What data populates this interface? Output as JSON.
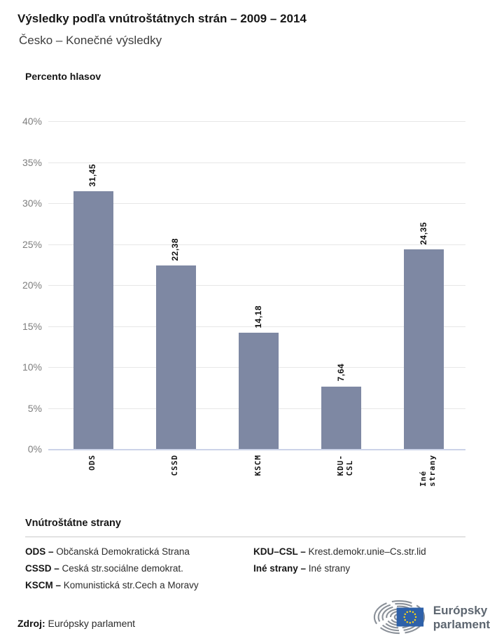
{
  "header": {
    "title": "Výsledky podľa vnútroštátnych strán – 2009 – 2014",
    "subtitle": "Česko – Konečné výsledky"
  },
  "chart_data": {
    "type": "bar",
    "axis_title": "Percento hlasov",
    "categories": [
      "ODS",
      "CSSD",
      "KSCM",
      "KDU-CSL",
      "Iné strany"
    ],
    "values": [
      31.45,
      22.38,
      14.18,
      7.64,
      24.35
    ],
    "value_labels": [
      "31,45",
      "22,38",
      "14,18",
      "7,64",
      "24,35"
    ],
    "ylim": [
      0,
      40
    ],
    "yticks": [
      40,
      35,
      30,
      25,
      20,
      15,
      10,
      5,
      0
    ],
    "ytick_suffix": "%",
    "grid": true,
    "legend_position": "none",
    "bar_color": "#7e88a3",
    "gridline_color": "#e7e7e7",
    "baseline_color": "#ccd3e8"
  },
  "legend": {
    "heading": "Vnútroštátne strany",
    "entries": [
      {
        "term": "ODS –",
        "definition": "Občanská Demokratická Strana"
      },
      {
        "term": "CSSD –",
        "definition": "Ceská str.sociálne demokrat."
      },
      {
        "term": "KSCM –",
        "definition": "Komunistická str.Cech a Moravy"
      },
      {
        "term": "KDU–CSL –",
        "definition": "Krest.demokr.unie–Cs.str.lid"
      },
      {
        "term": "Iné strany –",
        "definition": "Iné strany"
      }
    ]
  },
  "footer": {
    "source_label": "Zdroj:",
    "source_value": "Európsky parlament",
    "logo_icon": "ep-hemicycle-with-eu-flag",
    "logo_text_line1": "Európsky",
    "logo_text_line2": "parlament",
    "flag_color": "#2e61a9",
    "star_color": "#f7d31b",
    "hemicycle_color": "#8b9199"
  }
}
